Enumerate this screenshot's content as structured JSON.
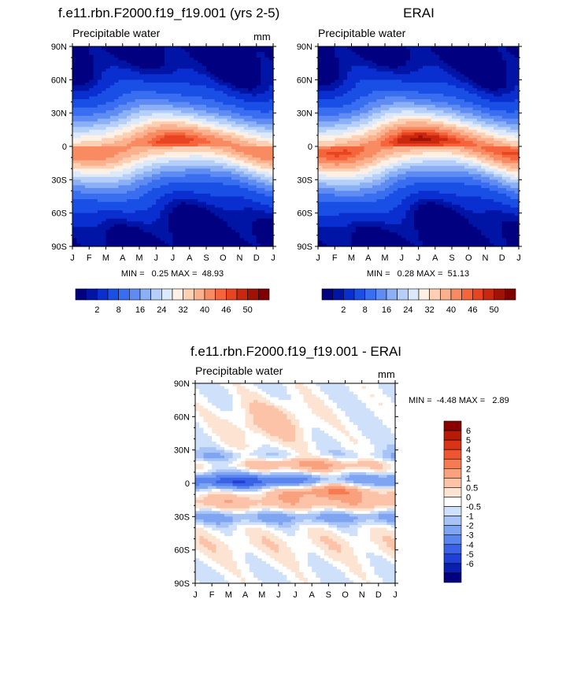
{
  "colors": {
    "abs_palette": [
      "#000080",
      "#0014a6",
      "#0a2fd0",
      "#1a4fe6",
      "#3a6ef0",
      "#5f8cf2",
      "#8cb0f5",
      "#b6cff8",
      "#dce9fb",
      "#fff0e6",
      "#fdd0b4",
      "#fbb18e",
      "#f98b62",
      "#f5643b",
      "#e84422",
      "#c9280f",
      "#a01204",
      "#800000"
    ],
    "diff_palette": [
      "#000080",
      "#0a1fb0",
      "#1f3fd6",
      "#3a62e6",
      "#5a85ee",
      "#7fa5f2",
      "#a8c4f6",
      "#cfe0fa",
      "#ffffff",
      "#fde3d2",
      "#fcc3a8",
      "#f9a07c",
      "#f67b52",
      "#ee5530",
      "#d93417",
      "#b51b07",
      "#8a0000"
    ]
  },
  "chart_data": [
    {
      "type": "heatmap",
      "title": "f.e11.rbn.F2000.f19_f19.001 (yrs 2-5)",
      "subtitle": "Precipitable water",
      "units": "mm",
      "xlabel": "",
      "ylabel": "",
      "x": [
        "J",
        "F",
        "M",
        "A",
        "M",
        "J",
        "J",
        "A",
        "S",
        "O",
        "N",
        "D",
        "J"
      ],
      "y_ticks": [
        "90N",
        "60N",
        "30N",
        "0",
        "30S",
        "60S",
        "90S"
      ],
      "ylim": [
        -90,
        90
      ],
      "stats": "MIN =   0.25 MAX =  48.93",
      "colorbar_labels": [
        "2",
        "8",
        "16",
        "24",
        "32",
        "40",
        "46",
        "50"
      ],
      "colorbar_levels": [
        1,
        2,
        4,
        8,
        12,
        16,
        20,
        24,
        28,
        32,
        36,
        40,
        44,
        46,
        48,
        50,
        52
      ],
      "data": {
        "eq_peak": 47,
        "itcz_amp": 6,
        "polar_n": 3,
        "polar_s": 1.5,
        "min": 0.25,
        "max": 48.93
      }
    },
    {
      "type": "heatmap",
      "title": "ERAI",
      "subtitle": "Precipitable water",
      "units": "",
      "xlabel": "",
      "ylabel": "",
      "x": [
        "J",
        "F",
        "M",
        "A",
        "M",
        "J",
        "J",
        "A",
        "S",
        "O",
        "N",
        "D",
        "J"
      ],
      "y_ticks": [
        "90N",
        "60N",
        "30N",
        "0",
        "30S",
        "60S",
        "90S"
      ],
      "ylim": [
        -90,
        90
      ],
      "stats": "MIN =   0.28 MAX =  51.13",
      "colorbar_labels": [
        "2",
        "8",
        "16",
        "24",
        "32",
        "40",
        "46",
        "50"
      ],
      "colorbar_levels": [
        1,
        2,
        4,
        8,
        12,
        16,
        20,
        24,
        28,
        32,
        36,
        40,
        44,
        46,
        48,
        50,
        52
      ],
      "data": {
        "eq_peak": 50,
        "itcz_amp": 7,
        "polar_n": 3,
        "polar_s": 1.5,
        "min": 0.28,
        "max": 51.13
      }
    },
    {
      "type": "heatmap",
      "title": "f.e11.rbn.F2000.f19_f19.001 - ERAI",
      "subtitle": "Precipitable water",
      "units": "mm",
      "xlabel": "",
      "ylabel": "",
      "x": [
        "J",
        "F",
        "M",
        "A",
        "M",
        "J",
        "J",
        "A",
        "S",
        "O",
        "N",
        "D",
        "J"
      ],
      "y_ticks": [
        "90N",
        "60N",
        "30N",
        "0",
        "30S",
        "60S",
        "90S"
      ],
      "ylim": [
        -90,
        90
      ],
      "stats": "MIN =  -4.48 MAX =   2.89",
      "colorbar_labels": [
        "6",
        "5",
        "4",
        "3",
        "2",
        "1",
        "0.5",
        "0",
        "-0.5",
        "-1",
        "-2",
        "-3",
        "-4",
        "-5",
        "-6"
      ],
      "colorbar_levels": [
        -6,
        -5,
        -4,
        -3,
        -2,
        -1,
        -0.5,
        0,
        0.5,
        1,
        2,
        3,
        4,
        5,
        6
      ],
      "data": {
        "min": -4.48,
        "max": 2.89
      }
    }
  ]
}
